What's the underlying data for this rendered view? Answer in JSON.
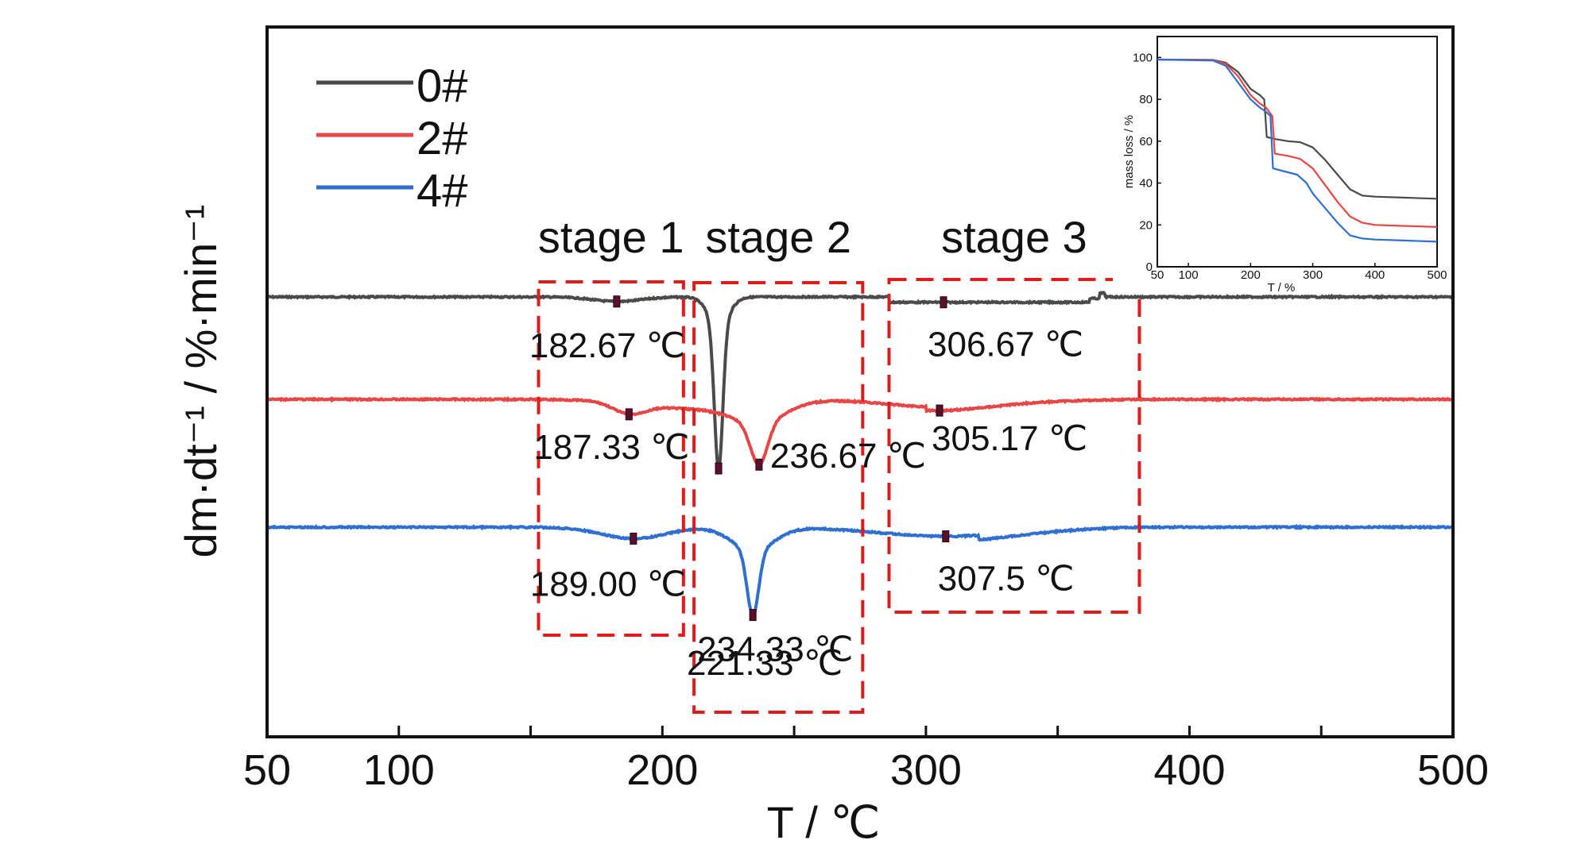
{
  "chart_data": {
    "type": "line",
    "xlabel": "T / ℃",
    "ylabel": "dm·dt⁻¹ / %·min⁻¹",
    "xlim": [
      50,
      500
    ],
    "xticks": [
      "50",
      "100",
      "200",
      "300",
      "400",
      "500"
    ],
    "grid": false,
    "legend_position": "top-left",
    "colors": {
      "0#": "#4a4a4a",
      "2#": "#e84545",
      "4#": "#2e6fd1",
      "stage_box": "#e01b1b",
      "marker": "#5a0f2e"
    },
    "stages": [
      {
        "label": "stage 1",
        "x_range": [
          153,
          208
        ]
      },
      {
        "label": "stage 2",
        "x_range": [
          212,
          276
        ]
      },
      {
        "label": "stage 3",
        "x_range": [
          286,
          381
        ]
      }
    ],
    "series": [
      {
        "name": "0#",
        "base": 0,
        "peaks": [
          {
            "x": 182.67,
            "label": "182.67 ℃"
          },
          {
            "x": 221.33,
            "label": "221.33 ℃"
          },
          {
            "x": 306.67,
            "label": "306.67 ℃"
          }
        ]
      },
      {
        "name": "2#",
        "base": -1,
        "peaks": [
          {
            "x": 187.33,
            "label": "187.33 ℃"
          },
          {
            "x": 236.67,
            "label": "236.67 ℃"
          },
          {
            "x": 305.17,
            "label": "305.17 ℃"
          }
        ]
      },
      {
        "name": "4#",
        "base": -2,
        "peaks": [
          {
            "x": 189.0,
            "label": "189.00 ℃"
          },
          {
            "x": 234.33,
            "label": "234.33 ℃"
          },
          {
            "x": 307.5,
            "label": "307.5 ℃"
          }
        ]
      }
    ],
    "inset": {
      "type": "line",
      "xlabel": "T / %",
      "ylabel": "mass loss / %",
      "xlim": [
        50,
        500
      ],
      "ylim": [
        0,
        110
      ],
      "xticks": [
        50,
        100,
        200,
        300,
        400,
        500
      ],
      "yticks": [
        0,
        20,
        40,
        60,
        80,
        100
      ],
      "series": [
        {
          "name": "0#",
          "x": [
            50,
            140,
            160,
            180,
            200,
            215,
            222,
            226,
            240,
            260,
            280,
            300,
            320,
            340,
            360,
            380,
            400,
            450,
            500
          ],
          "y": [
            99,
            98.8,
            97.5,
            93,
            85,
            82,
            80,
            62,
            61,
            60,
            59.5,
            57,
            51,
            44,
            37,
            34,
            33.5,
            33,
            32.5
          ]
        },
        {
          "name": "2#",
          "x": [
            50,
            140,
            160,
            180,
            200,
            215,
            225,
            235,
            239,
            260,
            280,
            300,
            320,
            340,
            360,
            380,
            400,
            450,
            500
          ],
          "y": [
            99,
            98.8,
            97,
            91,
            82,
            78,
            76,
            72,
            54,
            53,
            51.5,
            47,
            39,
            31,
            24,
            21,
            20,
            19.5,
            19
          ]
        },
        {
          "name": "4#",
          "x": [
            50,
            140,
            160,
            180,
            200,
            215,
            225,
            232,
            236,
            255,
            275,
            290,
            300,
            320,
            340,
            360,
            380,
            400,
            450,
            500
          ],
          "y": [
            99,
            98.5,
            96,
            88,
            80,
            76,
            74,
            72,
            47,
            45.5,
            44,
            40,
            35,
            28,
            21,
            15,
            13.5,
            13,
            12.5,
            12
          ]
        }
      ]
    }
  }
}
